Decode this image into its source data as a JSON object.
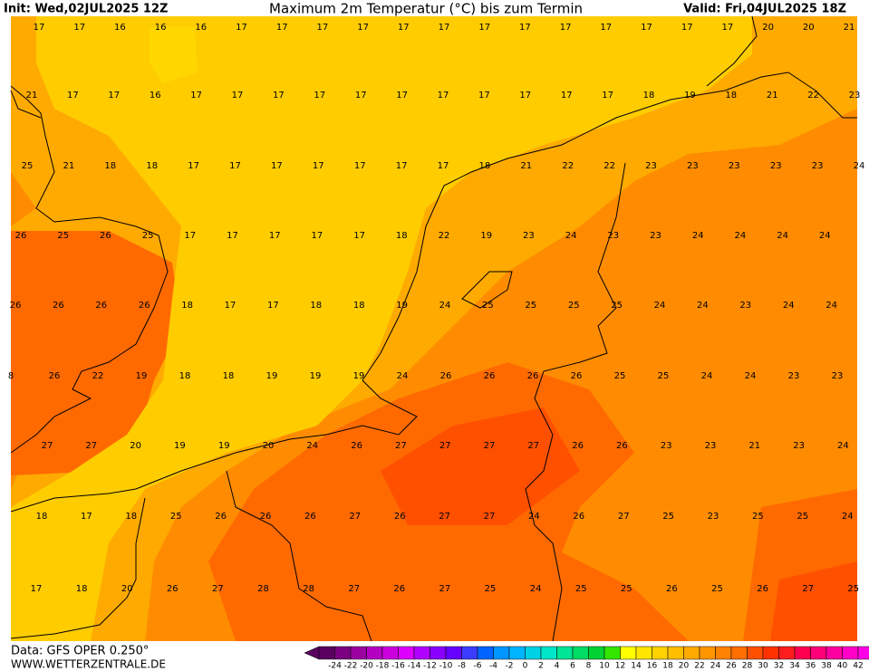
{
  "header": {
    "init": "Init: Wed,02JUL2025 12Z",
    "title": "Maximum 2m Temperatur (°C) bis zum Termin",
    "valid": "Valid: Fri,04JUL2025 18Z"
  },
  "map": {
    "rows": [
      [
        17,
        17,
        16,
        16,
        16,
        17,
        17,
        17,
        17,
        17,
        17,
        17,
        17,
        17,
        17,
        17,
        17,
        17,
        20,
        20,
        21
      ],
      [
        21,
        17,
        17,
        16,
        17,
        17,
        17,
        17,
        17,
        17,
        17,
        17,
        17,
        17,
        17,
        18,
        19,
        18,
        21,
        22,
        23
      ],
      [
        25,
        21,
        18,
        18,
        17,
        17,
        17,
        17,
        17,
        17,
        17,
        18,
        21,
        22,
        22,
        23,
        23,
        23,
        23,
        23,
        24
      ],
      [
        26,
        25,
        26,
        25,
        17,
        17,
        17,
        17,
        17,
        18,
        22,
        19,
        23,
        24,
        23,
        23,
        24,
        24,
        24,
        24
      ],
      [
        26,
        26,
        26,
        26,
        18,
        17,
        17,
        18,
        18,
        19,
        24,
        25,
        25,
        25,
        25,
        24,
        24,
        23,
        24,
        24
      ],
      [
        8,
        26,
        22,
        19,
        18,
        18,
        19,
        19,
        19,
        24,
        26,
        26,
        26,
        26,
        25,
        25,
        24,
        24,
        23,
        23
      ],
      [
        27,
        27,
        20,
        19,
        19,
        20,
        24,
        26,
        27,
        27,
        27,
        27,
        26,
        26,
        23,
        23,
        21,
        23,
        24
      ],
      [
        18,
        17,
        18,
        25,
        26,
        26,
        26,
        27,
        26,
        27,
        27,
        24,
        26,
        27,
        25,
        23,
        25,
        25,
        24
      ],
      [
        17,
        18,
        20,
        26,
        27,
        28,
        28,
        27,
        26,
        27,
        25,
        24,
        25,
        25,
        26,
        25,
        26,
        27,
        25
      ]
    ]
  },
  "legend": {
    "ticks": [
      -24,
      -22,
      -20,
      -18,
      -16,
      -14,
      -12,
      -10,
      -8,
      -6,
      -4,
      -2,
      0,
      2,
      4,
      6,
      8,
      10,
      12,
      14,
      16,
      18,
      20,
      22,
      24,
      26,
      28,
      30,
      32,
      34,
      36,
      38,
      40,
      42
    ],
    "colors": [
      "#5a0060",
      "#7a0080",
      "#9a00a0",
      "#b400c0",
      "#cc00dd",
      "#dd00ff",
      "#b000ff",
      "#8a00ff",
      "#6600ff",
      "#3c3cff",
      "#0064ff",
      "#0096ff",
      "#00b4ff",
      "#00d2e6",
      "#00e6c8",
      "#00e696",
      "#00dc64",
      "#00d232",
      "#32e600",
      "#ffff00",
      "#ffe600",
      "#ffd200",
      "#ffbe00",
      "#ffaa00",
      "#ff9600",
      "#ff8200",
      "#ff6e00",
      "#ff5000",
      "#ff3200",
      "#ff1e1e",
      "#ff0050",
      "#ff0078",
      "#ff00a0",
      "#ff00c8",
      "#ff00e6"
    ]
  },
  "footer": {
    "source": "Data: GFS OPER 0.250°",
    "site": "WWW.WETTERZENTRALE.DE"
  }
}
